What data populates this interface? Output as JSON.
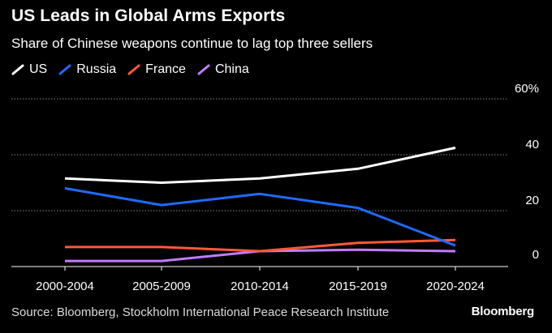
{
  "chart_data": {
    "type": "line",
    "title": "US Leads in Global Arms Exports",
    "subtitle": "Share of Chinese weapons continue to lag top three sellers",
    "categories": [
      "2000-2004",
      "2005-2009",
      "2010-2014",
      "2015-2019",
      "2020-2024"
    ],
    "series": [
      {
        "name": "US",
        "color": "#ffffff",
        "values": [
          31.5,
          30,
          31.5,
          35,
          42.5
        ]
      },
      {
        "name": "Russia",
        "color": "#1f6bff",
        "values": [
          28,
          22,
          26,
          21,
          7.5
        ]
      },
      {
        "name": "France",
        "color": "#ff5a36",
        "values": [
          7,
          7,
          5.5,
          8.5,
          9.5
        ]
      },
      {
        "name": "China",
        "color": "#c27cff",
        "values": [
          2,
          2,
          5.5,
          6,
          5.5
        ]
      }
    ],
    "ylim": [
      0,
      60
    ],
    "yticks": [
      {
        "value": 60,
        "label": "60%"
      },
      {
        "value": 40,
        "label": "40"
      },
      {
        "value": 20,
        "label": "20"
      },
      {
        "value": 0,
        "label": "0"
      }
    ],
    "grid": true,
    "legend_position": "top-left"
  },
  "source": "Source: Bloomberg, Stockholm International Peace Research Institute",
  "brand": "Bloomberg"
}
